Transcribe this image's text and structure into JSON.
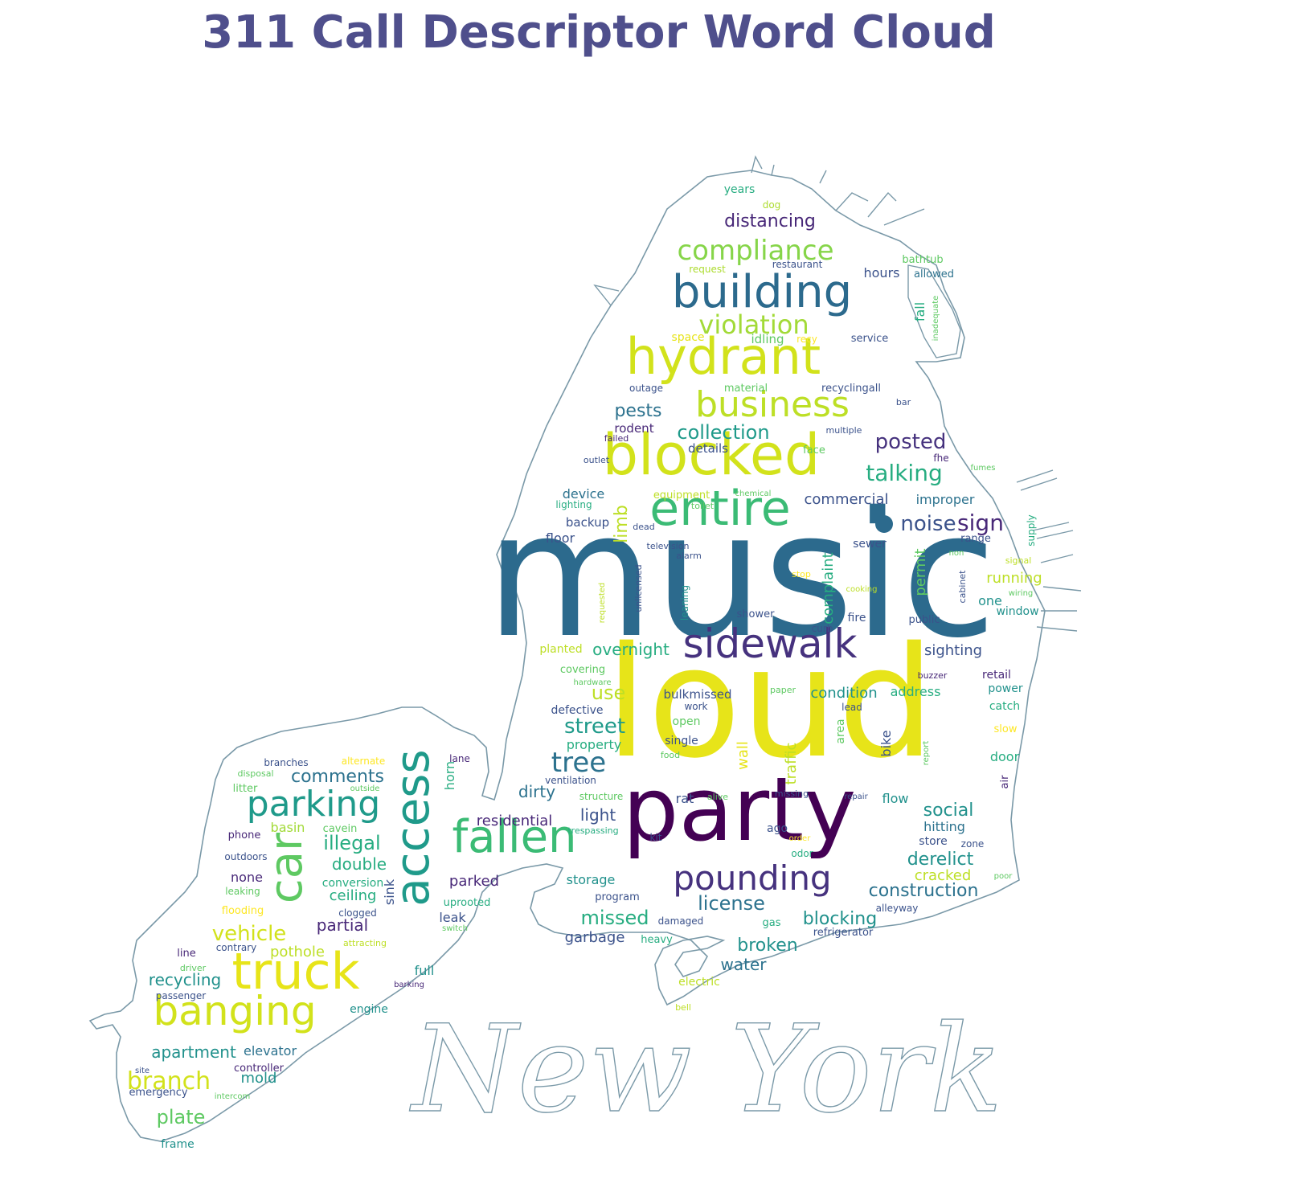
{
  "title": "311 Call Descriptor Word Cloud",
  "watermark": "New York",
  "colors": {
    "title": "#4f4f8c",
    "outline": "#7a99a8",
    "palette": [
      "#440154",
      "#3b528b",
      "#21918c",
      "#5ec962",
      "#bddf26",
      "#fde725",
      "#482878",
      "#2c728e",
      "#27ad81",
      "#addc30"
    ]
  },
  "words": [
    {
      "t": "music",
      "c": "#2c6a8d"
    },
    {
      "t": "loud",
      "c": "#e7e419"
    },
    {
      "t": "party",
      "c": "#440154"
    },
    {
      "t": "blocked",
      "c": "#d2e21b"
    },
    {
      "t": "entire",
      "c": "#3bbb75"
    },
    {
      "t": "hydrant",
      "c": "#d2e21b"
    },
    {
      "t": "building",
      "c": "#2c6a8d"
    },
    {
      "t": "sidewalk",
      "c": "#46327e"
    },
    {
      "t": "fallen",
      "c": "#3bbb75"
    },
    {
      "t": "truck",
      "c": "#e7e419"
    },
    {
      "t": "banging",
      "c": "#d2e21b"
    },
    {
      "t": "access",
      "c": "#1f9a8a"
    },
    {
      "t": "car",
      "c": "#5ec962"
    },
    {
      "t": "parking",
      "c": "#1f9a8a"
    },
    {
      "t": "business",
      "c": "#bddf26"
    },
    {
      "t": "pounding",
      "c": "#46327e"
    },
    {
      "t": "compliance",
      "c": "#86d549"
    },
    {
      "t": "violation",
      "c": "#a2da37"
    },
    {
      "t": "posted",
      "c": "#46327e"
    },
    {
      "t": "talking",
      "c": "#27ad81"
    },
    {
      "t": "noise",
      "c": "#3b528b"
    },
    {
      "t": "sign",
      "c": "#482878"
    },
    {
      "t": "tree",
      "c": "#2c728e"
    },
    {
      "t": "street",
      "c": "#1f9a8a"
    },
    {
      "t": "construction",
      "c": "#2c728e"
    },
    {
      "t": "license",
      "c": "#2c728e"
    },
    {
      "t": "collection",
      "c": "#1f9a8a"
    },
    {
      "t": "pests",
      "c": "#2c728e"
    },
    {
      "t": "distancing",
      "c": "#482878"
    },
    {
      "t": "branch",
      "c": "#d2e21b"
    },
    {
      "t": "vehicle",
      "c": "#d2e21b"
    },
    {
      "t": "illegal",
      "c": "#27ad81"
    },
    {
      "t": "comments",
      "c": "#2c728e"
    },
    {
      "t": "plate",
      "c": "#5ec962"
    },
    {
      "t": "double",
      "c": "#27ad81"
    },
    {
      "t": "missed",
      "c": "#27ad81"
    },
    {
      "t": "blocking",
      "c": "#21918c"
    },
    {
      "t": "broken",
      "c": "#21918c"
    },
    {
      "t": "derelict",
      "c": "#21918c"
    },
    {
      "t": "social",
      "c": "#21918c"
    },
    {
      "t": "apartment",
      "c": "#21918c"
    },
    {
      "t": "recycling",
      "c": "#21918c"
    },
    {
      "t": "residential",
      "c": "#482878"
    },
    {
      "t": "light",
      "c": "#3b528b"
    },
    {
      "t": "dirty",
      "c": "#2c728e"
    },
    {
      "t": "partial",
      "c": "#482878"
    },
    {
      "t": "ceiling",
      "c": "#27ad81"
    },
    {
      "t": "parked",
      "c": "#482878"
    },
    {
      "t": "overnight",
      "c": "#27ad81"
    },
    {
      "t": "use",
      "c": "#bddf26"
    },
    {
      "t": "commercial",
      "c": "#3b528b"
    },
    {
      "t": "improper",
      "c": "#2c728e"
    },
    {
      "t": "condition",
      "c": "#21918c"
    },
    {
      "t": "address",
      "c": "#27ad81"
    },
    {
      "t": "sighting",
      "c": "#3b528b"
    },
    {
      "t": "running",
      "c": "#bddf26"
    },
    {
      "t": "hitting",
      "c": "#2c728e"
    },
    {
      "t": "cracked",
      "c": "#bddf26"
    },
    {
      "t": "water",
      "c": "#2c728e"
    },
    {
      "t": "garbage",
      "c": "#3b528b"
    },
    {
      "t": "storage",
      "c": "#21918c"
    },
    {
      "t": "property",
      "c": "#27ad81"
    },
    {
      "t": "device",
      "c": "#2c728e"
    },
    {
      "t": "floor",
      "c": "#3b528b"
    },
    {
      "t": "backup",
      "c": "#3b528b"
    },
    {
      "t": "details",
      "c": "#3b528b"
    },
    {
      "t": "rodent",
      "c": "#482878"
    },
    {
      "t": "permit",
      "c": "#5ec962"
    },
    {
      "t": "complaint",
      "c": "#27ad81"
    },
    {
      "t": "limb",
      "c": "#bddf26"
    },
    {
      "t": "wall",
      "c": "#e7e419"
    },
    {
      "t": "traffic",
      "c": "#bddf26"
    },
    {
      "t": "area",
      "c": "#5ec962"
    },
    {
      "t": "bike",
      "c": "#3b528b"
    },
    {
      "t": "horn",
      "c": "#27ad81"
    },
    {
      "t": "sink",
      "c": "#3b528b"
    },
    {
      "t": "leak",
      "c": "#3b528b"
    },
    {
      "t": "mold",
      "c": "#21918c"
    },
    {
      "t": "elevator",
      "c": "#2c728e"
    },
    {
      "t": "pothole",
      "c": "#bddf26"
    },
    {
      "t": "basin",
      "c": "#a2da37"
    },
    {
      "t": "none",
      "c": "#482878"
    },
    {
      "t": "full",
      "c": "#21918c"
    },
    {
      "t": "engine",
      "c": "#21918c"
    },
    {
      "t": "frame",
      "c": "#21918c"
    },
    {
      "t": "one",
      "c": "#21918c"
    },
    {
      "t": "window",
      "c": "#21918c"
    },
    {
      "t": "fire",
      "c": "#3b528b"
    },
    {
      "t": "public",
      "c": "#3b528b"
    },
    {
      "t": "shower",
      "c": "#3b528b"
    },
    {
      "t": "sewer",
      "c": "#3b528b"
    },
    {
      "t": "rat",
      "c": "#3b528b"
    },
    {
      "t": "flow",
      "c": "#21918c"
    },
    {
      "t": "door",
      "c": "#27ad81"
    },
    {
      "t": "defective",
      "c": "#3b528b"
    },
    {
      "t": "hours",
      "c": "#3b528b"
    },
    {
      "t": "fall",
      "c": "#27ad81"
    },
    {
      "t": "retail",
      "c": "#482878"
    },
    {
      "t": "power",
      "c": "#21918c"
    },
    {
      "t": "catch",
      "c": "#27ad81"
    },
    {
      "t": "store",
      "c": "#3b528b"
    },
    {
      "t": "ago",
      "c": "#3b528b"
    },
    {
      "t": "years",
      "c": "#27ad81"
    },
    {
      "t": "dog",
      "c": "#addc30"
    },
    {
      "t": "bathtub",
      "c": "#5ec962"
    },
    {
      "t": "allowed",
      "c": "#2c728e"
    },
    {
      "t": "request",
      "c": "#addc30"
    },
    {
      "t": "restaurant",
      "c": "#3b528b"
    },
    {
      "t": "space",
      "c": "#e7e419"
    },
    {
      "t": "idling",
      "c": "#5ec962"
    },
    {
      "t": "recy",
      "c": "#fde725"
    },
    {
      "t": "service",
      "c": "#3b528b"
    },
    {
      "t": "inadequate",
      "c": "#5ec962"
    },
    {
      "t": "outage",
      "c": "#3b528b"
    },
    {
      "t": "material",
      "c": "#5ec962"
    },
    {
      "t": "recyclingall",
      "c": "#3b528b"
    },
    {
      "t": "bar",
      "c": "#3b528b"
    },
    {
      "t": "failed",
      "c": "#482878"
    },
    {
      "t": "multiple",
      "c": "#3b528b"
    },
    {
      "t": "face",
      "c": "#5ec962"
    },
    {
      "t": "fhe",
      "c": "#482878"
    },
    {
      "t": "fumes",
      "c": "#5ec962"
    },
    {
      "t": "outlet",
      "c": "#3b528b"
    },
    {
      "t": "lighting",
      "c": "#27ad81"
    },
    {
      "t": "equipment",
      "c": "#bddf26"
    },
    {
      "t": "chemical",
      "c": "#5ec962"
    },
    {
      "t": "toilet",
      "c": "#5ec962"
    },
    {
      "t": "dead",
      "c": "#3b528b"
    },
    {
      "t": "supply",
      "c": "#27ad81"
    },
    {
      "t": "range",
      "c": "#3b528b"
    },
    {
      "t": "television",
      "c": "#3b528b"
    },
    {
      "t": "alarm",
      "c": "#3b528b"
    },
    {
      "t": "non",
      "c": "#5ec962"
    },
    {
      "t": "signal",
      "c": "#bddf26"
    },
    {
      "t": "stop",
      "c": "#fde725"
    },
    {
      "t": "cabinet",
      "c": "#3b528b"
    },
    {
      "t": "cooking",
      "c": "#bddf26"
    },
    {
      "t": "wiring",
      "c": "#5ec962"
    },
    {
      "t": "requested",
      "c": "#bddf26"
    },
    {
      "t": "unlicensed",
      "c": "#3b528b"
    },
    {
      "t": "leaning",
      "c": "#21918c"
    },
    {
      "t": "curb",
      "c": "#3b528b"
    },
    {
      "t": "planted",
      "c": "#bddf26"
    },
    {
      "t": "covering",
      "c": "#5ec962"
    },
    {
      "t": "hardware",
      "c": "#5ec962"
    },
    {
      "t": "buzzer",
      "c": "#482878"
    },
    {
      "t": "bulkmissed",
      "c": "#3b528b"
    },
    {
      "t": "paper",
      "c": "#5ec962"
    },
    {
      "t": "work",
      "c": "#3b528b"
    },
    {
      "t": "lead",
      "c": "#3b528b"
    },
    {
      "t": "open",
      "c": "#5ec962"
    },
    {
      "t": "single",
      "c": "#3b528b"
    },
    {
      "t": "food",
      "c": "#5ec962"
    },
    {
      "t": "report",
      "c": "#5ec962"
    },
    {
      "t": "slow",
      "c": "#fde725"
    },
    {
      "t": "air",
      "c": "#482878"
    },
    {
      "t": "ventilation",
      "c": "#3b528b"
    },
    {
      "t": "structure",
      "c": "#5ec962"
    },
    {
      "t": "alive",
      "c": "#5ec962"
    },
    {
      "t": "missing",
      "c": "#3b528b"
    },
    {
      "t": "repair",
      "c": "#3b528b"
    },
    {
      "t": "trespassing",
      "c": "#27ad81"
    },
    {
      "t": "kit",
      "c": "#3b528b"
    },
    {
      "t": "order",
      "c": "#fde725"
    },
    {
      "t": "odor",
      "c": "#27ad81"
    },
    {
      "t": "zone",
      "c": "#3b528b"
    },
    {
      "t": "poor",
      "c": "#5ec962"
    },
    {
      "t": "program",
      "c": "#3b528b"
    },
    {
      "t": "alleyway",
      "c": "#3b528b"
    },
    {
      "t": "damaged",
      "c": "#3b528b"
    },
    {
      "t": "gas",
      "c": "#27ad81"
    },
    {
      "t": "refrigerator",
      "c": "#3b528b"
    },
    {
      "t": "heavy",
      "c": "#27ad81"
    },
    {
      "t": "electric",
      "c": "#bddf26"
    },
    {
      "t": "bell",
      "c": "#bddf26"
    },
    {
      "t": "branches",
      "c": "#3b528b"
    },
    {
      "t": "alternate",
      "c": "#fde725"
    },
    {
      "t": "lane",
      "c": "#482878"
    },
    {
      "t": "disposal",
      "c": "#5ec962"
    },
    {
      "t": "litter",
      "c": "#5ec962"
    },
    {
      "t": "outside",
      "c": "#5ec962"
    },
    {
      "t": "phone",
      "c": "#482878"
    },
    {
      "t": "cavein",
      "c": "#5ec962"
    },
    {
      "t": "outdoors",
      "c": "#3b528b"
    },
    {
      "t": "conversion",
      "c": "#27ad81"
    },
    {
      "t": "leaking",
      "c": "#5ec962"
    },
    {
      "t": "uprooted",
      "c": "#27ad81"
    },
    {
      "t": "flooding",
      "c": "#fde725"
    },
    {
      "t": "clogged",
      "c": "#3b528b"
    },
    {
      "t": "switch",
      "c": "#5ec962"
    },
    {
      "t": "line",
      "c": "#482878"
    },
    {
      "t": "contrary",
      "c": "#3b528b"
    },
    {
      "t": "attracting",
      "c": "#bddf26"
    },
    {
      "t": "driver",
      "c": "#5ec962"
    },
    {
      "t": "barking",
      "c": "#482878"
    },
    {
      "t": "passenger",
      "c": "#3b528b"
    },
    {
      "t": "controller",
      "c": "#482878"
    },
    {
      "t": "site",
      "c": "#3b528b"
    },
    {
      "t": "emergency",
      "c": "#3b528b"
    },
    {
      "t": "intercom",
      "c": "#5ec962"
    }
  ]
}
